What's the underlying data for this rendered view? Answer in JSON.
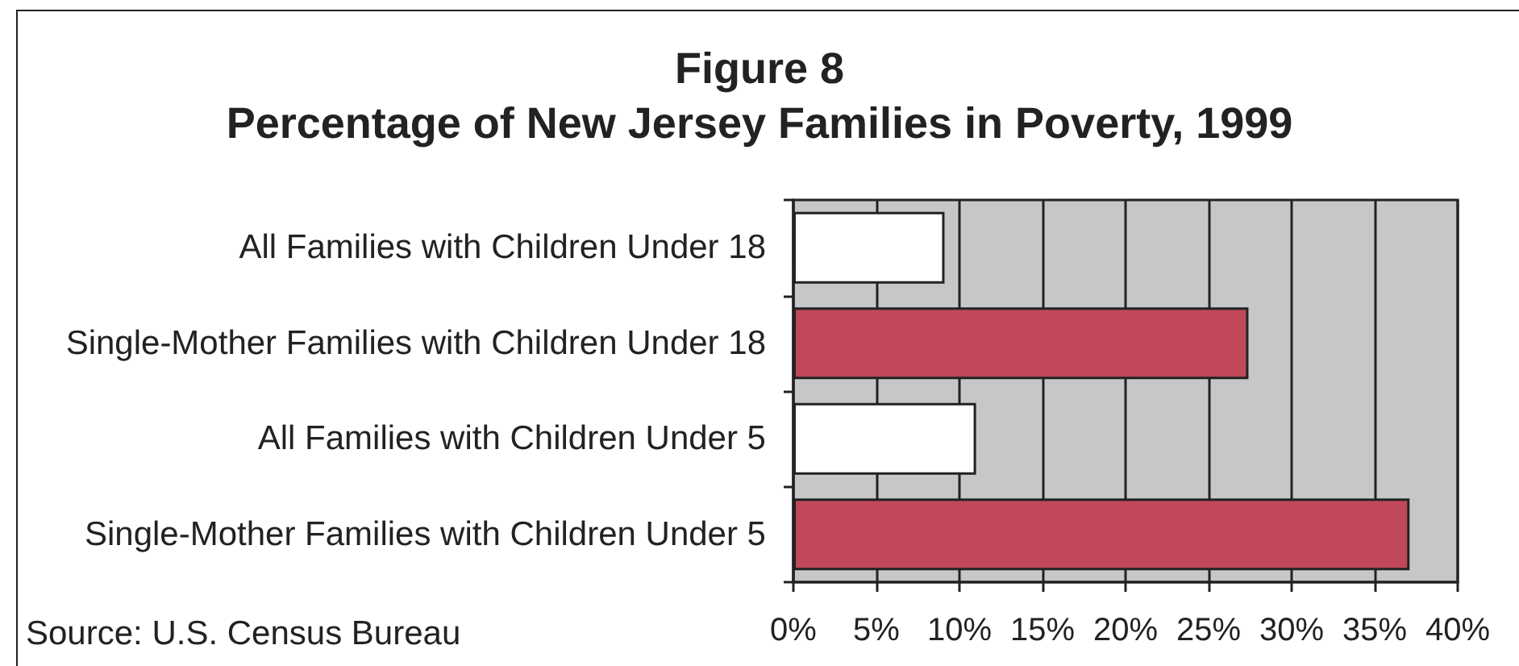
{
  "chart_data": {
    "type": "bar",
    "orientation": "horizontal",
    "title": "Figure 8",
    "subtitle": "Percentage of New Jersey Families in Poverty, 1999",
    "categories": [
      "All Families with Children Under 18",
      "Single-Mother Families with Children Under 18",
      "All Families with Children Under 5",
      "Single-Mother Families with Children Under 5"
    ],
    "values": [
      9.1,
      27.4,
      11.0,
      37.1
    ],
    "colors": [
      "#ffffff",
      "#c0485a",
      "#ffffff",
      "#c0485a"
    ],
    "xlim": [
      0,
      40
    ],
    "xticks": [
      {
        "value": 0,
        "label": "0%"
      },
      {
        "value": 5,
        "label": "5%"
      },
      {
        "value": 10,
        "label": "10%"
      },
      {
        "value": 15,
        "label": "15%"
      },
      {
        "value": 20,
        "label": "20%"
      },
      {
        "value": 25,
        "label": "25%"
      },
      {
        "value": 30,
        "label": "30%"
      },
      {
        "value": 35,
        "label": "35%"
      },
      {
        "value": 40,
        "label": "40%"
      }
    ],
    "grid": "x",
    "annotations": [
      "Source: U.S. Census Bureau"
    ]
  }
}
